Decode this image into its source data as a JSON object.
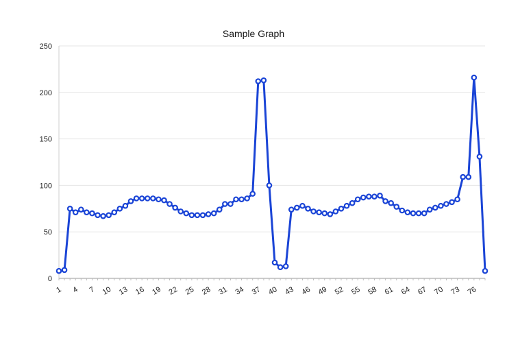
{
  "chart_data": {
    "type": "line",
    "title": "Sample Graph",
    "xlabel": "",
    "ylabel": "",
    "ylim": [
      0,
      250
    ],
    "yticks": [
      0,
      50,
      100,
      150,
      200,
      250
    ],
    "xtick_labels": [
      "1",
      "4",
      "7",
      "10",
      "13",
      "16",
      "19",
      "22",
      "25",
      "28",
      "31",
      "34",
      "37",
      "40",
      "43",
      "46",
      "49",
      "52",
      "55",
      "58",
      "61",
      "64",
      "67",
      "70",
      "73",
      "76"
    ],
    "grid": true,
    "legend": "none",
    "color": "#1a44d6",
    "x": [
      1,
      2,
      3,
      4,
      5,
      6,
      7,
      8,
      9,
      10,
      11,
      12,
      13,
      14,
      15,
      16,
      17,
      18,
      19,
      20,
      21,
      22,
      23,
      24,
      25,
      26,
      27,
      28,
      29,
      30,
      31,
      32,
      33,
      34,
      35,
      36,
      37,
      38,
      39,
      40,
      41,
      42,
      43,
      44,
      45,
      46,
      47,
      48,
      49,
      50,
      51,
      52,
      53,
      54,
      55,
      56,
      57,
      58,
      59,
      60,
      61,
      62,
      63,
      64,
      65,
      66,
      67,
      68,
      69,
      70,
      71,
      72,
      73,
      74,
      75,
      76,
      77,
      78
    ],
    "series": [
      {
        "values": [
          8,
          9,
          75,
          71,
          74,
          71,
          70,
          68,
          67,
          68,
          71,
          75,
          78,
          83,
          86,
          86,
          86,
          86,
          85,
          84,
          80,
          76,
          72,
          70,
          68,
          68,
          68,
          69,
          70,
          74,
          80,
          80,
          85,
          85,
          86,
          91,
          212,
          213,
          100,
          17,
          12,
          13,
          74,
          76,
          78,
          75,
          72,
          71,
          70,
          69,
          72,
          75,
          78,
          81,
          85,
          87,
          88,
          88,
          89,
          83,
          81,
          77,
          73,
          71,
          70,
          70,
          70,
          74,
          76,
          78,
          80,
          82,
          85,
          109,
          109,
          216,
          131,
          8
        ]
      }
    ]
  }
}
